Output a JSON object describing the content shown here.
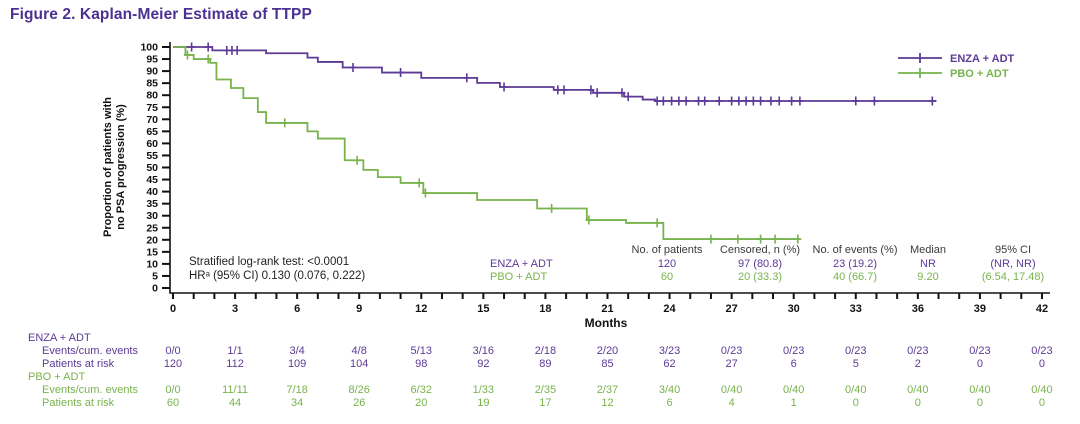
{
  "title": "Figure 2. Kaplan-Meier Estimate of TTPP",
  "colors": {
    "enza": "#5c3a96",
    "pbo": "#78b34c",
    "title": "#4b3192",
    "axis": "#111111",
    "text": "#222222"
  },
  "stats": {
    "line1": "Stratified log-rank test: <0.0001",
    "line2": "HRᵃ (95% CI) 0.130 (0.076, 0.222)"
  },
  "chart_data": {
    "type": "line",
    "subtype": "kaplan-meier-step",
    "title": "Figure 2. Kaplan-Meier Estimate of TTPP",
    "xlabel": "Months",
    "ylabel_line1": "Proportion of patients with",
    "ylabel_line2": "no PSA progression (%)",
    "xlim": [
      0,
      42
    ],
    "xtick_major": 3,
    "xtick_minor": 1,
    "ylim": [
      0,
      100
    ],
    "ytick_step": 5,
    "grid": false,
    "legend_position": "top-right",
    "series": [
      {
        "name": "ENZA + ADT",
        "color_key": "enza",
        "steps": [
          [
            0,
            100
          ],
          [
            1.9,
            98.6
          ],
          [
            4.5,
            97.4
          ],
          [
            6.5,
            95.6
          ],
          [
            7.0,
            93.8
          ],
          [
            8.2,
            91.5
          ],
          [
            10.1,
            89.4
          ],
          [
            12.0,
            87.2
          ],
          [
            14.7,
            85.1
          ],
          [
            15.8,
            83.4
          ],
          [
            18.4,
            82.2
          ],
          [
            20.3,
            81.0
          ],
          [
            21.8,
            79.4
          ],
          [
            22.7,
            78.2
          ],
          [
            23.3,
            77.6
          ]
        ],
        "end_month": 36.9,
        "censor_marks": [
          0.9,
          1.7,
          2.6,
          2.85,
          3.1,
          8.7,
          11.0,
          14.2,
          16.0,
          18.6,
          18.9,
          20.2,
          20.5,
          21.7,
          22.0,
          23.4,
          23.7,
          24.1,
          24.45,
          24.8,
          25.4,
          25.7,
          26.4,
          27.0,
          27.35,
          27.7,
          28.05,
          28.4,
          28.9,
          29.3,
          29.9,
          30.3,
          33.0,
          33.9,
          36.7
        ]
      },
      {
        "name": "PBO + ADT",
        "color_key": "pbo",
        "steps": [
          [
            0,
            100
          ],
          [
            0.6,
            96.7
          ],
          [
            1.0,
            95.0
          ],
          [
            1.8,
            93.4
          ],
          [
            2.1,
            86.5
          ],
          [
            2.8,
            83.0
          ],
          [
            3.4,
            78.8
          ],
          [
            4.1,
            73.0
          ],
          [
            4.5,
            68.5
          ],
          [
            6.5,
            65.0
          ],
          [
            7.0,
            62.0
          ],
          [
            8.3,
            53.0
          ],
          [
            9.2,
            49.0
          ],
          [
            9.9,
            46.0
          ],
          [
            11.0,
            43.6
          ],
          [
            12.1,
            39.4
          ],
          [
            14.7,
            36.5
          ],
          [
            17.6,
            33.0
          ],
          [
            20.0,
            28.2
          ],
          [
            21.9,
            27.0
          ],
          [
            23.7,
            20.3
          ]
        ],
        "end_month": 30.3,
        "censor_marks": [
          0.7,
          1.7,
          5.4,
          8.9,
          11.9,
          12.2,
          18.3,
          20.1,
          23.4,
          26.0,
          27.3,
          28.4,
          29.1,
          30.2
        ]
      }
    ],
    "summary_table": {
      "headers": [
        "No. of patients",
        "Censored, n (%)",
        "No. of events (%)",
        "Median",
        "95% CI"
      ],
      "rows": [
        {
          "label": "ENZA + ADT",
          "series": "enza",
          "values": [
            "120",
            "97 (80.8)",
            "23 (19.2)",
            "NR",
            "(NR, NR)"
          ]
        },
        {
          "label": "PBO + ADT",
          "series": "pbo",
          "values": [
            "60",
            "20 (33.3)",
            "40 (66.7)",
            "9.20",
            "(6.54, 17.48)"
          ]
        }
      ]
    },
    "risk_table": {
      "months": [
        0,
        3,
        6,
        9,
        12,
        15,
        18,
        21,
        24,
        27,
        30,
        33,
        36,
        39,
        42
      ],
      "groups": [
        {
          "label": "ENZA + ADT",
          "series": "enza",
          "rows": [
            {
              "label": "Events/cum. events",
              "values": [
                "0/0",
                "1/1",
                "3/4",
                "4/8",
                "5/13",
                "3/16",
                "2/18",
                "2/20",
                "3/23",
                "0/23",
                "0/23",
                "0/23",
                "0/23",
                "0/23",
                "0/23"
              ]
            },
            {
              "label": "Patients at risk",
              "values": [
                "120",
                "112",
                "109",
                "104",
                "98",
                "92",
                "89",
                "85",
                "62",
                "27",
                "6",
                "5",
                "2",
                "0",
                "0"
              ]
            }
          ]
        },
        {
          "label": "PBO + ADT",
          "series": "pbo",
          "rows": [
            {
              "label": "Events/cum. events",
              "values": [
                "0/0",
                "11/11",
                "7/18",
                "8/26",
                "6/32",
                "1/33",
                "2/35",
                "2/37",
                "3/40",
                "0/40",
                "0/40",
                "0/40",
                "0/40",
                "0/40",
                "0/40"
              ]
            },
            {
              "label": "Patients at risk",
              "values": [
                "60",
                "44",
                "34",
                "26",
                "20",
                "19",
                "17",
                "12",
                "6",
                "4",
                "1",
                "0",
                "0",
                "0",
                "0"
              ]
            }
          ]
        }
      ]
    }
  }
}
